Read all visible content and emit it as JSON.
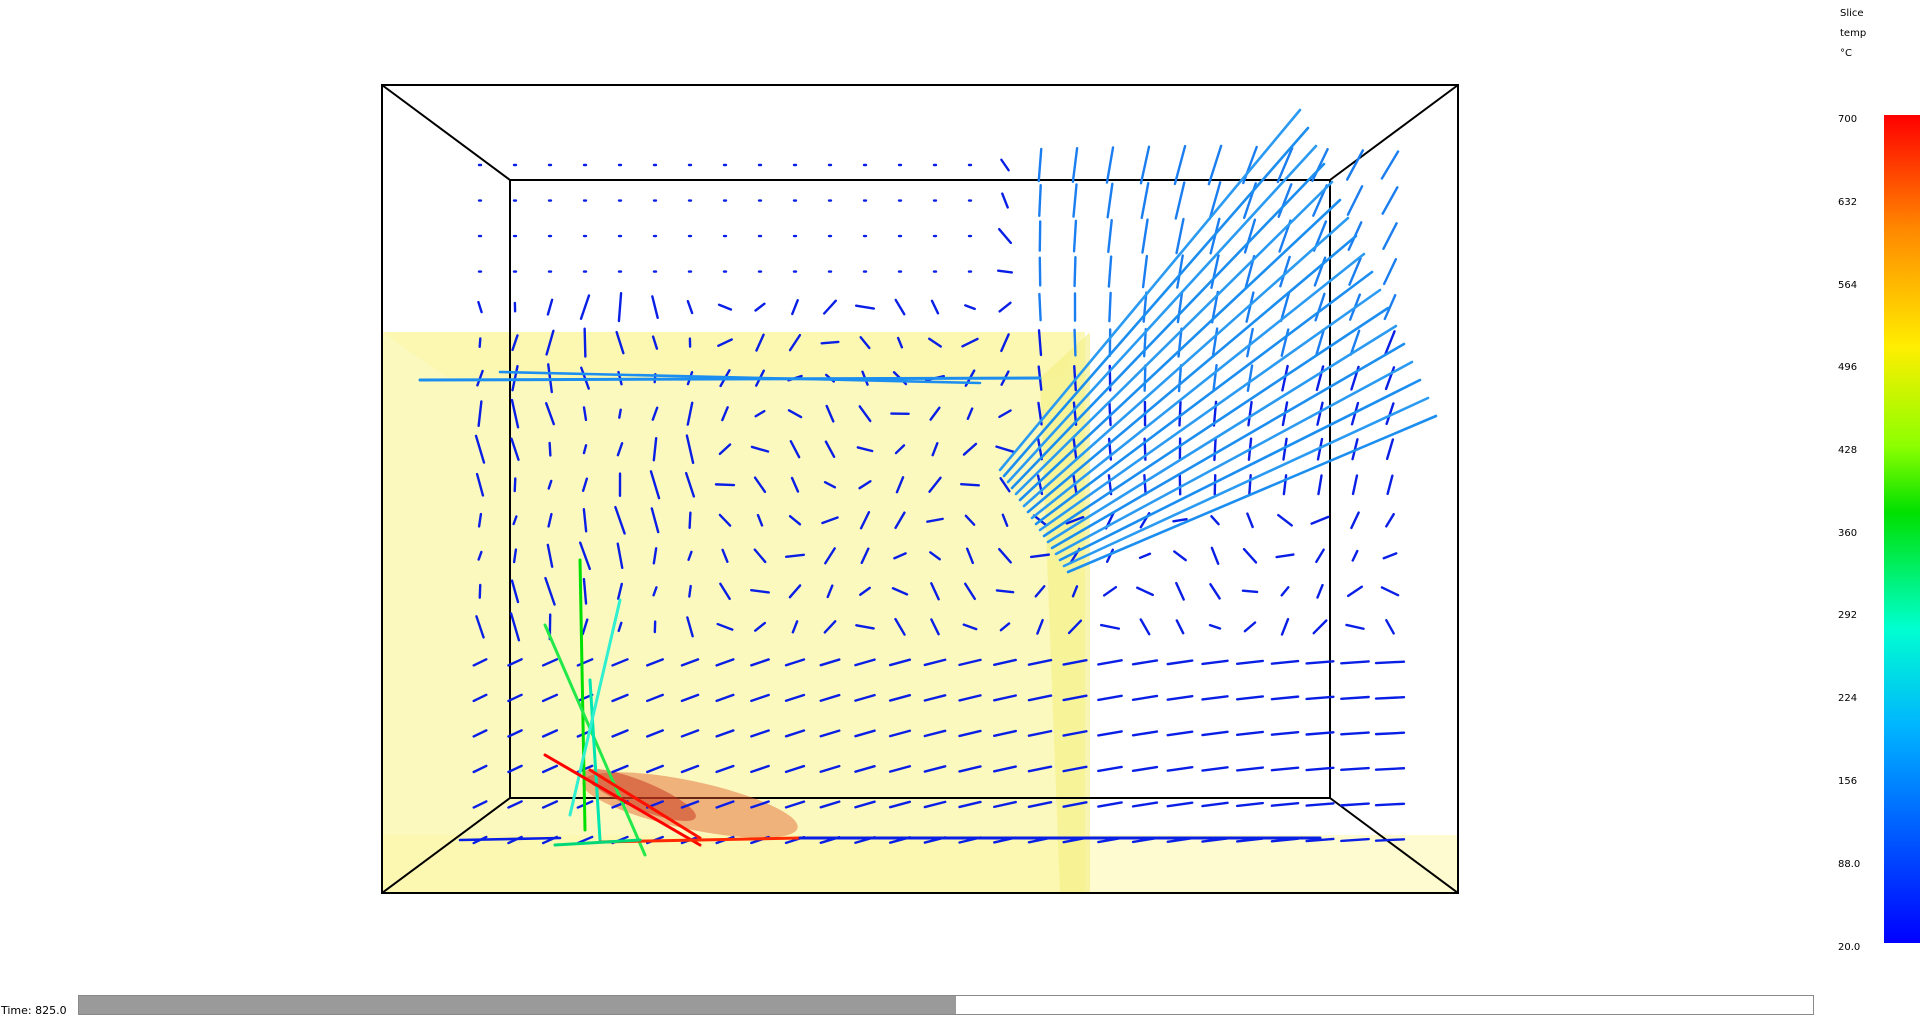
{
  "legend": {
    "title_lines": [
      "Slice",
      "temp",
      "°C"
    ],
    "ticks": [
      "700",
      "632",
      "564",
      "496",
      "428",
      "360",
      "292",
      "224",
      "156",
      "88.0",
      "20.0"
    ],
    "colors": [
      "#ff0000",
      "#ff8a00",
      "#ffee00",
      "#8cff00",
      "#00e000",
      "#00ffd0",
      "#00b4ff",
      "#0060ff",
      "#0000ff"
    ]
  },
  "status": {
    "time_text": "Time: 825.0",
    "progress_fraction": 0.506
  },
  "scene": {
    "slice_color": "#fbf7a8",
    "outline_color": "#000000",
    "vector_base_color": "#0a1fe6",
    "fire_color": "#e05a2a"
  }
}
